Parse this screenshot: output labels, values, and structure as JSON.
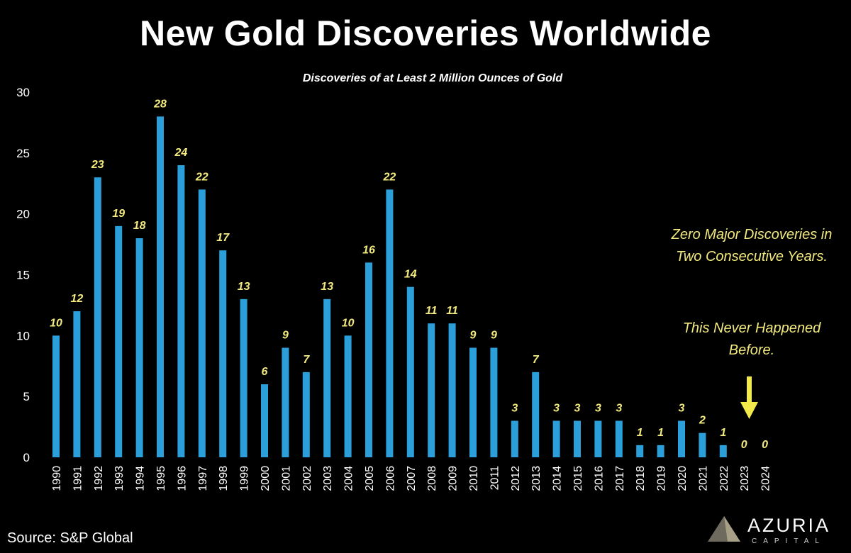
{
  "title": "New Gold Discoveries Worldwide",
  "subtitle": "Discoveries of at Least 2 Million Ounces of Gold",
  "callout": {
    "line1": "Zero Major Discoveries in Two Consecutive Years.",
    "line2": "This Never Happened Before."
  },
  "source": "Source: S&P Global",
  "logo": {
    "name": "AZURIA",
    "sub": "CAPITAL"
  },
  "colors": {
    "background": "#000000",
    "bar": "#2b9fd9",
    "value_label": "#f2ea7e",
    "axis_text": "#ffffff",
    "arrow": "#f2ea4a"
  },
  "chart_data": {
    "type": "bar",
    "title": "New Gold Discoveries Worldwide",
    "subtitle": "Discoveries of at Least 2 Million Ounces of Gold",
    "categories": [
      "1990",
      "1991",
      "1992",
      "1993",
      "1994",
      "1995",
      "1996",
      "1997",
      "1998",
      "1999",
      "2000",
      "2001",
      "2002",
      "2003",
      "2004",
      "2005",
      "2006",
      "2007",
      "2008",
      "2009",
      "2010",
      "2011",
      "2012",
      "2013",
      "2014",
      "2015",
      "2016",
      "2017",
      "2018",
      "2019",
      "2020",
      "2021",
      "2022",
      "2023",
      "2024"
    ],
    "values": [
      10,
      12,
      23,
      19,
      18,
      28,
      24,
      22,
      17,
      13,
      6,
      9,
      7,
      13,
      10,
      16,
      22,
      14,
      11,
      11,
      9,
      9,
      3,
      7,
      3,
      3,
      3,
      3,
      1,
      1,
      3,
      2,
      1,
      0,
      0
    ],
    "ylim": [
      0,
      30
    ],
    "yticks": [
      0,
      5,
      10,
      15,
      20,
      25,
      30
    ],
    "grid": false,
    "legend": "none",
    "xlabel": "",
    "ylabel": ""
  }
}
